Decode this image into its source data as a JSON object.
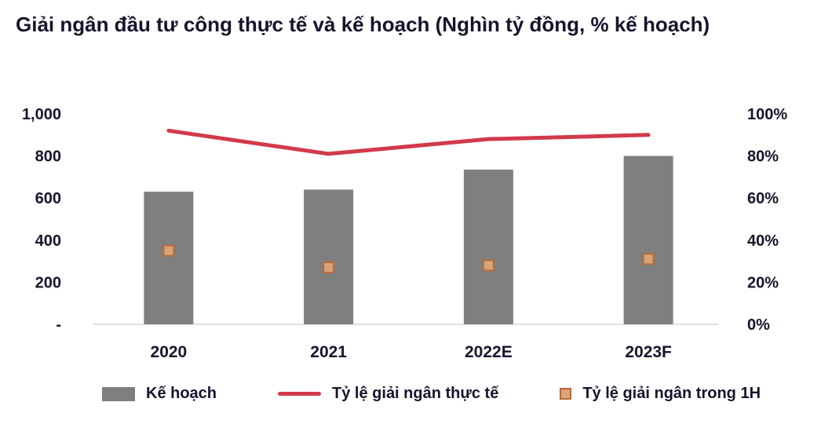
{
  "chart_data": {
    "type": "combo",
    "title": "Giải ngân đầu tư công thực tế và kế hoạch (Nghìn tỷ đồng, % kế hoạch)",
    "categories": [
      "2020",
      "2021",
      "2022E",
      "2023F"
    ],
    "series": [
      {
        "name": "Kế hoạch",
        "type": "bar",
        "axis": "left",
        "color": "#7f7f7f",
        "values": [
          630,
          640,
          735,
          800
        ]
      },
      {
        "name": "Tỷ lệ giải ngân thực tế",
        "type": "line",
        "axis": "right",
        "color": "#d23a4b",
        "values_pct": [
          92,
          81,
          88,
          90
        ]
      },
      {
        "name": "Tỷ lệ giải ngân trong 1H",
        "type": "scatter-square",
        "axis": "right",
        "fill": "#d9a478",
        "stroke": "#b96a36",
        "values_pct": [
          35,
          27,
          28,
          31
        ]
      }
    ],
    "left_axis": {
      "ticks": [
        "1,000",
        "800",
        "600",
        "400",
        "200",
        " - "
      ],
      "min": 0,
      "max": 1000
    },
    "right_axis": {
      "ticks": [
        "100%",
        "80%",
        "60%",
        "40%",
        "20%",
        "0%"
      ],
      "min": 0,
      "max": 100
    },
    "axis_line_color": "#d9d9d9",
    "grid": false,
    "legend_position": "bottom"
  }
}
